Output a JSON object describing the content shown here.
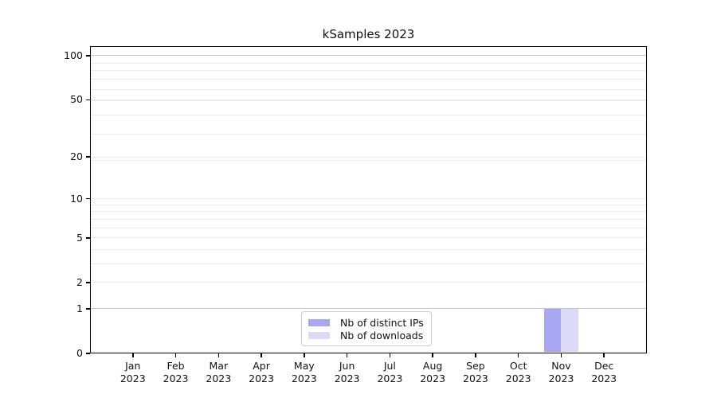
{
  "page": {
    "background": "#ffffff"
  },
  "chart_data": {
    "type": "bar",
    "title": "kSamples 2023",
    "xlabel": "",
    "ylabel": "",
    "categories": [
      "Jan 2023",
      "Feb 2023",
      "Mar 2023",
      "Apr 2023",
      "May 2023",
      "Jun 2023",
      "Jul 2023",
      "Aug 2023",
      "Sep 2023",
      "Oct 2023",
      "Nov 2023",
      "Dec 2023"
    ],
    "series": [
      {
        "name": "Nb of distinct IPs",
        "color": "#a7a7f3",
        "values": [
          0,
          0,
          0,
          0,
          0,
          0,
          0,
          0,
          0,
          0,
          1,
          0
        ]
      },
      {
        "name": "Nb of downloads",
        "color": "#dbdbf8",
        "values": [
          0,
          0,
          0,
          0,
          0,
          0,
          0,
          0,
          0,
          0,
          1,
          0
        ]
      }
    ],
    "yscale": "log1p",
    "y_ticks": [
      0,
      1,
      2,
      5,
      10,
      20,
      50,
      100
    ],
    "ylim": [
      0,
      116
    ],
    "grid": "horizontal",
    "gridlines": {
      "major": [
        1,
        100
      ],
      "minor": [
        2,
        3,
        4,
        5,
        6,
        7,
        8,
        9,
        10,
        19,
        20,
        29,
        39,
        49,
        50,
        59,
        69,
        79,
        89
      ]
    },
    "legend_position": "bottom-center",
    "colors": {
      "grid_major": "#c6c6c6",
      "grid_minor": "#ececec",
      "axis": "#000000",
      "text": "#111111"
    }
  }
}
